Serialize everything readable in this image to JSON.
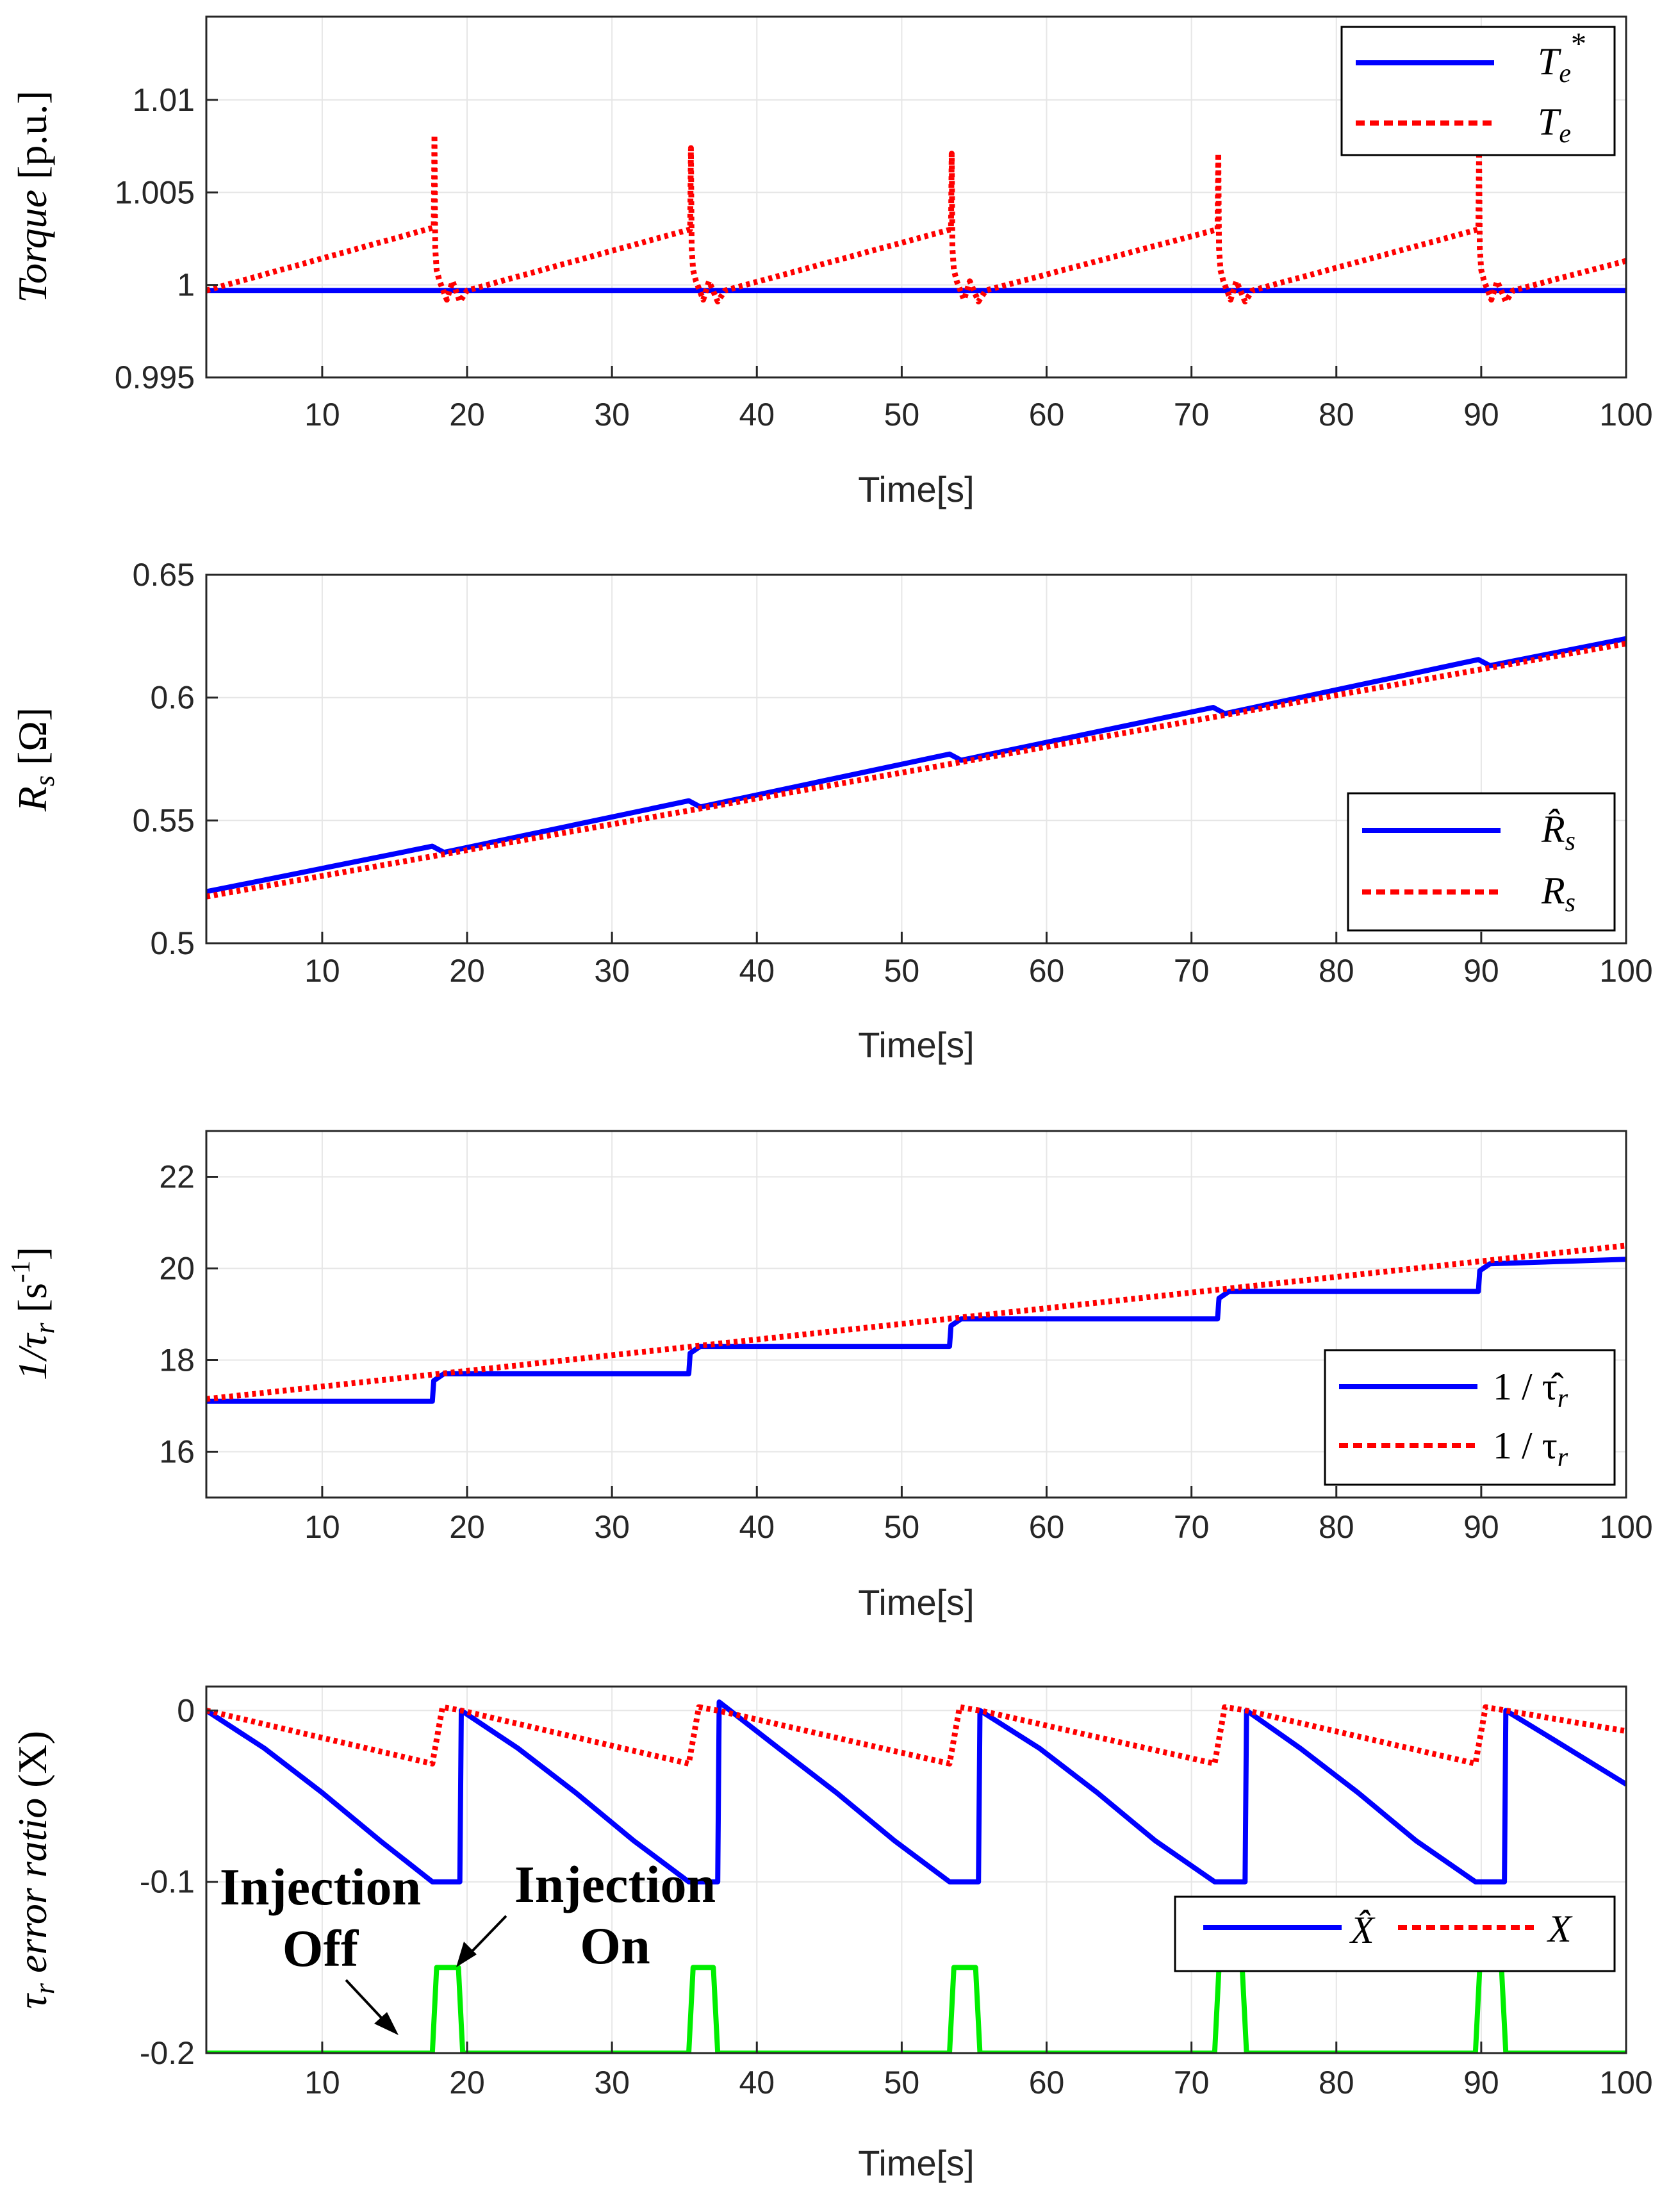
{
  "chart_data": [
    {
      "type": "line",
      "id": "torque",
      "ylabel": "Torque [p.u.]",
      "ylabel_italic_part": "Torque",
      "ylabel_unit": "[p.u.]",
      "xlabel": "Time[s]",
      "xlim": [
        2,
        100
      ],
      "ylim": [
        0.995,
        1.0145
      ],
      "xticks": [
        10,
        20,
        30,
        40,
        50,
        60,
        70,
        80,
        90,
        100
      ],
      "yticks": [
        0.995,
        1,
        1.005,
        1.01
      ],
      "ytick_labels": [
        "0.995",
        "1",
        "1.005",
        "1.01"
      ],
      "grid": true,
      "legend_position": "top-right",
      "series": [
        {
          "name": "Te*",
          "legend_main": "T",
          "legend_sub": "e",
          "legend_sup": "*",
          "color": "#0000ff",
          "style": "solid",
          "x": [
            2,
            100
          ],
          "y": [
            0.9997,
            0.9997
          ]
        },
        {
          "name": "Te",
          "legend_main": "T",
          "legend_sub": "e",
          "legend_sup": "",
          "color": "#ff0000",
          "style": "dotted",
          "x": [
            2,
            17.7,
            17.75,
            17.8,
            17.9,
            18.1,
            18.6,
            19.0,
            19.5,
            20.0,
            35.4,
            35.45,
            35.5,
            35.6,
            35.8,
            36.3,
            36.7,
            37.3,
            37.8,
            53.4,
            53.45,
            53.5,
            53.6,
            53.8,
            54.3,
            54.7,
            55.3,
            55.8,
            71.8,
            71.85,
            71.9,
            72.0,
            72.2,
            72.7,
            73.1,
            73.7,
            74.2,
            89.8,
            89.85,
            89.9,
            90.0,
            90.2,
            90.7,
            91.1,
            91.7,
            92.2,
            100
          ],
          "y": [
            0.9997,
            1.0031,
            1.0081,
            1.002,
            1.0008,
            1.0002,
            0.9992,
            1.0002,
            0.9991,
            0.9997,
            1.003,
            1.0074,
            1.002,
            1.0008,
            1.0002,
            0.9992,
            1.0002,
            0.9991,
            0.9997,
            1.003,
            1.0071,
            1.002,
            1.0008,
            1.0002,
            0.9992,
            1.0002,
            0.9991,
            0.9997,
            1.003,
            1.0071,
            1.002,
            1.0008,
            1.0002,
            0.9992,
            1.0002,
            0.9991,
            0.9997,
            1.003,
            1.0072,
            1.002,
            1.0008,
            1.0002,
            0.9992,
            1.0002,
            0.9991,
            0.9997,
            1.0013
          ]
        }
      ]
    },
    {
      "type": "line",
      "id": "rs",
      "ylabel": "Rs [Ω]",
      "ylabel_main": "R",
      "ylabel_sub": "s",
      "ylabel_unit": "[Ω]",
      "xlabel": "Time[s]",
      "xlim": [
        2,
        100
      ],
      "ylim": [
        0.5,
        0.65
      ],
      "xticks": [
        10,
        20,
        30,
        40,
        50,
        60,
        70,
        80,
        90,
        100
      ],
      "yticks": [
        0.5,
        0.55,
        0.6,
        0.65
      ],
      "ytick_labels": [
        "0.5",
        "0.55",
        "0.6",
        "0.65"
      ],
      "grid": true,
      "legend_position": "lower-right",
      "series": [
        {
          "name": "R̂s",
          "legend_main": "R̂",
          "legend_sub": "s",
          "color": "#0000ff",
          "style": "solid",
          "x": [
            2,
            17.6,
            18.4,
            35.3,
            36.1,
            53.3,
            54.1,
            71.5,
            72.3,
            89.8,
            90.6,
            100
          ],
          "y": [
            0.521,
            0.5395,
            0.537,
            0.558,
            0.5555,
            0.577,
            0.5745,
            0.596,
            0.5935,
            0.6155,
            0.613,
            0.624
          ]
        },
        {
          "name": "Rs",
          "legend_main": "R",
          "legend_sub": "s",
          "color": "#ff0000",
          "style": "dotted",
          "x": [
            2,
            100
          ],
          "y": [
            0.519,
            0.622
          ]
        }
      ]
    },
    {
      "type": "line",
      "id": "taur",
      "ylabel": "1/τr [s-1]",
      "ylabel_main": "1/τ",
      "ylabel_sub": "r",
      "ylabel_unit": "[s",
      "ylabel_sup": "-1",
      "ylabel_close": "]",
      "xlabel": "Time[s]",
      "xlim": [
        2,
        100
      ],
      "ylim": [
        15,
        23
      ],
      "xticks": [
        10,
        20,
        30,
        40,
        50,
        60,
        70,
        80,
        90,
        100
      ],
      "yticks": [
        16,
        18,
        20,
        22
      ],
      "ytick_labels": [
        "16",
        "18",
        "20",
        "22"
      ],
      "grid": true,
      "legend_position": "lower-right",
      "series": [
        {
          "name": "1/τ̂r",
          "legend_main": "1 / τ̂",
          "legend_sub": "r",
          "color": "#0000ff",
          "style": "solid",
          "x": [
            2,
            17.6,
            17.7,
            18.4,
            35.3,
            35.4,
            36.1,
            53.3,
            53.4,
            54.1,
            71.8,
            71.9,
            72.6,
            89.8,
            89.9,
            90.6,
            100
          ],
          "y": [
            17.1,
            17.1,
            17.55,
            17.7,
            17.7,
            18.15,
            18.3,
            18.3,
            18.75,
            18.9,
            18.9,
            19.35,
            19.5,
            19.5,
            19.95,
            20.1,
            20.2
          ]
        },
        {
          "name": "1/τr",
          "legend_main": "1 / τ",
          "legend_sub": "r",
          "color": "#ff0000",
          "style": "dotted",
          "x": [
            2,
            100
          ],
          "y": [
            17.15,
            20.5
          ]
        }
      ]
    },
    {
      "type": "line",
      "id": "ratio",
      "ylabel": "τr error ratio (X)",
      "ylabel_main": "τ",
      "ylabel_sub": "r",
      "ylabel_italic_part": " error ratio",
      "ylabel_unit": " (X)",
      "xlabel": "Time[s]",
      "xlim": [
        2,
        100
      ],
      "ylim": [
        -0.2,
        0.014
      ],
      "xticks": [
        10,
        20,
        30,
        40,
        50,
        60,
        70,
        80,
        90,
        100
      ],
      "yticks": [
        -0.2,
        -0.1,
        0
      ],
      "ytick_labels": [
        "-0.2",
        "-0.1",
        "0"
      ],
      "grid": true,
      "legend_position": "center-right",
      "series": [
        {
          "name": "X̂",
          "legend_main": "X̂",
          "color": "#0000ff",
          "style": "solid",
          "x": [
            2,
            6,
            10,
            14,
            17.6,
            19.5,
            19.6,
            23.5,
            27.5,
            31.5,
            35.3,
            37.3,
            37.4,
            41.5,
            45.5,
            49.5,
            53.3,
            55.3,
            55.4,
            59.5,
            63.5,
            67.5,
            71.6,
            73.7,
            73.8,
            77.5,
            81.5,
            85.5,
            89.6,
            91.6,
            91.7,
            95,
            100
          ],
          "y": [
            0,
            -0.022,
            -0.048,
            -0.076,
            -0.1,
            -0.1,
            0,
            -0.022,
            -0.048,
            -0.076,
            -0.1,
            -0.1,
            0.005,
            -0.022,
            -0.048,
            -0.076,
            -0.1,
            -0.1,
            0,
            -0.022,
            -0.048,
            -0.076,
            -0.1,
            -0.1,
            0,
            -0.022,
            -0.048,
            -0.076,
            -0.1,
            -0.1,
            0,
            -0.017,
            -0.043
          ]
        },
        {
          "name": "X",
          "legend_main": "X",
          "color": "#ff0000",
          "style": "dotted",
          "x": [
            2,
            17.6,
            18.3,
            19.6,
            35.3,
            36.0,
            37.3,
            53.3,
            54.0,
            55.4,
            71.6,
            72.3,
            73.8,
            89.6,
            90.3,
            91.7,
            100
          ],
          "y": [
            0,
            -0.031,
            0.002,
            0,
            -0.031,
            0.002,
            0,
            -0.031,
            0.002,
            0,
            -0.031,
            0.002,
            0,
            -0.031,
            0.002,
            0,
            -0.012
          ]
        },
        {
          "name": "Injection",
          "color": "#00ee00",
          "style": "solid",
          "show_in_legend": false,
          "x": [
            2,
            17.6,
            17.9,
            19.4,
            19.7,
            35.3,
            35.6,
            37.0,
            37.3,
            53.3,
            53.6,
            55.1,
            55.4,
            71.6,
            71.9,
            73.5,
            73.8,
            89.6,
            89.9,
            91.4,
            91.7,
            100
          ],
          "y": [
            -0.2,
            -0.2,
            -0.15,
            -0.15,
            -0.2,
            -0.2,
            -0.15,
            -0.15,
            -0.2,
            -0.2,
            -0.15,
            -0.15,
            -0.2,
            -0.2,
            -0.15,
            -0.15,
            -0.2,
            -0.2,
            -0.15,
            -0.15,
            -0.2,
            -0.2
          ]
        }
      ],
      "annotations": [
        {
          "text": "Injection",
          "role": "off-line1"
        },
        {
          "text": "Off",
          "role": "off-line2"
        },
        {
          "text": "Injection",
          "role": "on-line1"
        },
        {
          "text": "On",
          "role": "on-line2"
        }
      ]
    }
  ]
}
